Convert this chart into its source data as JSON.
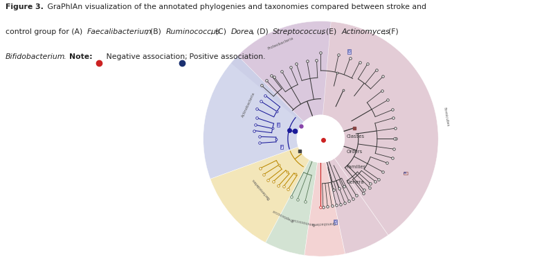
{
  "fig_width": 7.99,
  "fig_height": 3.71,
  "bg": "#ffffff",
  "text_color": "#333333",
  "caption_bold": "Figure 3.",
  "caption_line1": " GraPhIAn visualization of the annotated phylogenies and taxonomies compared between stroke and",
  "caption_line2_pre": "control group for (A) ",
  "caption_line2_species": [
    "Faecalibacterium",
    ", (B) ",
    "Ruminococcus",
    ", (C) ",
    "Dorea",
    ", (D) ",
    "Streptococcus",
    ", (E) ",
    "Actinomyces",
    "; (F)"
  ],
  "caption_line3_species": "Bifidobacterium",
  "caption_line3_note": ". Note:",
  "caption_neg": " Negative association;",
  "caption_pos": " Positive association.",
  "neg_color": "#cc2222",
  "pos_color": "#1a3070",
  "sector_firmicutes": {
    "color": "#ddc0cc",
    "th1": -55,
    "th2": 135
  },
  "sector_proteobacteria": {
    "color": "#d8c8e0",
    "th1": 85,
    "th2": 140
  },
  "sector_actinobacteria": {
    "color": "#c8cee8",
    "th1": 135,
    "th2": 200
  },
  "sector_bacteroidetes": {
    "color": "#f0e0a8",
    "th1": 200,
    "th2": 242
  },
  "sector_synergistetes": {
    "color": "#c8dcc8",
    "th1": 242,
    "th2": 262
  },
  "sector_spirochaetes": {
    "color": "#f0c8c8",
    "th1": 262,
    "th2": 282
  },
  "sector_firmicutes2": {
    "color": "#ddc0cc",
    "th1": 282,
    "th2": 305
  },
  "tree_color": "#333333",
  "actin_color": "#1a1a99",
  "bact_color": "#bb8800",
  "legend_labels": [
    "Classes",
    "Orders",
    "Families",
    "Genera"
  ],
  "phylum_label_proteobacteria": "Proteobacteria",
  "phylum_label_firmicutes": "Firmicutes",
  "phylum_label_actinobacteria": "Actinobacteria",
  "phylum_label_bacteroidetes": "Bacteroidetes"
}
